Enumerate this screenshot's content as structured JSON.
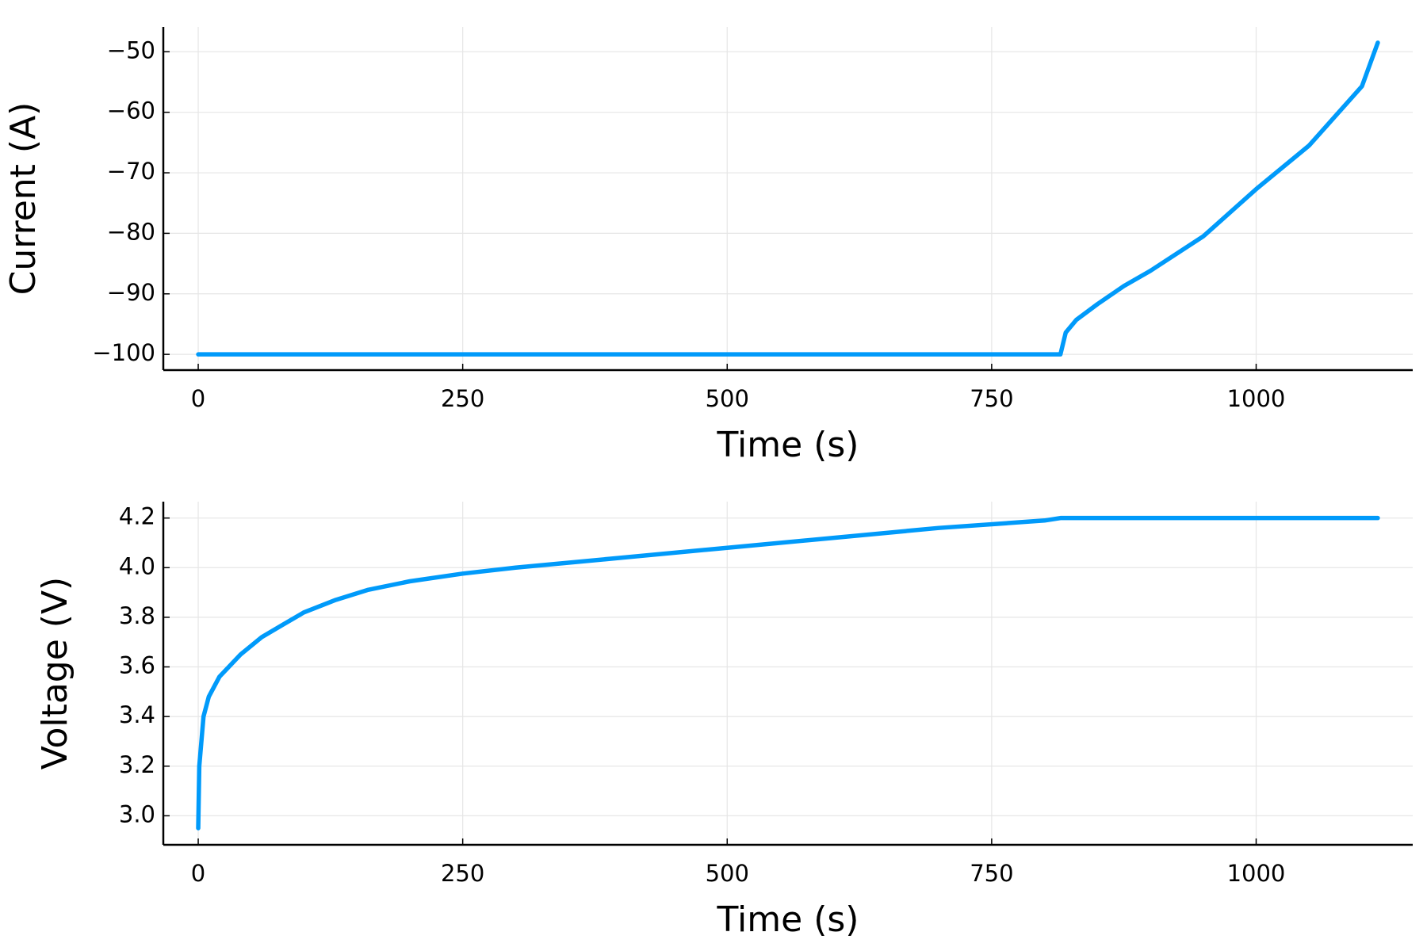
{
  "chart_data": [
    {
      "type": "line",
      "xlabel": "Time (s)",
      "ylabel": "Current (A)",
      "x": [
        0,
        815,
        820,
        830,
        850,
        875,
        900,
        950,
        1000,
        1050,
        1100,
        1115
      ],
      "series": [
        {
          "color": "#009afa",
          "values": [
            -100,
            -100,
            -96.4,
            -94.3,
            -91.7,
            -88.7,
            -86.2,
            -80.5,
            -72.7,
            -65.5,
            -55.7,
            -48.5
          ]
        }
      ],
      "xlim": [
        -33,
        1148
      ],
      "ylim": [
        -102.6,
        -45.9
      ],
      "xticks": [
        0,
        250,
        500,
        750,
        1000
      ],
      "yticks": [
        {
          "value": -100,
          "label": "−100"
        },
        {
          "value": -90,
          "label": "−90"
        },
        {
          "value": -80,
          "label": "−80"
        },
        {
          "value": -70,
          "label": "−70"
        },
        {
          "value": -60,
          "label": "−60"
        },
        {
          "value": -50,
          "label": "−50"
        }
      ],
      "grid": true
    },
    {
      "type": "line",
      "xlabel": "Time (s)",
      "ylabel": "Voltage (V)",
      "x": [
        0,
        1,
        3,
        5,
        10,
        20,
        40,
        60,
        80,
        100,
        130,
        160,
        200,
        250,
        300,
        400,
        500,
        600,
        700,
        800,
        815,
        1115
      ],
      "series": [
        {
          "color": "#009afa",
          "values": [
            2.95,
            3.2,
            3.3,
            3.4,
            3.48,
            3.56,
            3.65,
            3.72,
            3.77,
            3.82,
            3.87,
            3.91,
            3.945,
            3.976,
            4.0,
            4.04,
            4.08,
            4.12,
            4.16,
            4.19,
            4.2,
            4.2
          ]
        }
      ],
      "xlim": [
        -33,
        1148
      ],
      "ylim": [
        2.883,
        4.266
      ],
      "xticks": [
        0,
        250,
        500,
        750,
        1000
      ],
      "yticks": [
        {
          "value": 3,
          "label": "3.0"
        },
        3.2,
        3.4,
        3.6,
        3.8,
        {
          "value": 4,
          "label": "4.0"
        },
        4.2
      ],
      "grid": true
    }
  ]
}
